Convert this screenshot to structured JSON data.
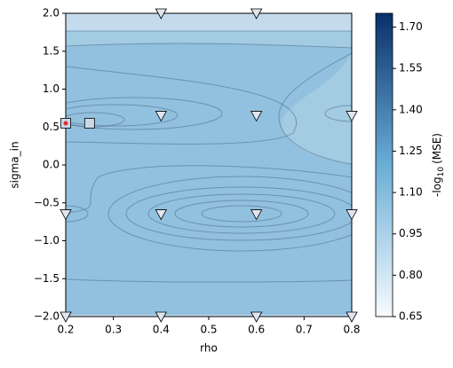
{
  "chart_data": {
    "type": "contour",
    "x_label": "rho",
    "y_label": "sigma_in",
    "xlim": [
      0.2,
      0.8
    ],
    "ylim": [
      -2,
      2
    ],
    "xticks": [
      0.2,
      0.3,
      0.4,
      0.5,
      0.6,
      0.7,
      0.8
    ],
    "yticks": [
      {
        "value": -2,
        "label": "−2.0"
      },
      {
        "value": -1.5,
        "label": "−1.5"
      },
      {
        "value": -1,
        "label": "−1.0"
      },
      {
        "value": -0.5,
        "label": "−0.5"
      },
      {
        "value": 0,
        "label": "0.0"
      },
      {
        "value": 0.5,
        "label": "0.5"
      },
      {
        "value": 1,
        "label": "1.0"
      },
      {
        "value": 1.5,
        "label": "1.5"
      },
      {
        "value": 2,
        "label": "2.0"
      }
    ],
    "colorbar": {
      "label_prefix": "-log",
      "label_subscript": "10",
      "label_suffix": "(MSE)",
      "clim": [
        0.65,
        1.75
      ],
      "ticks": [
        0.65,
        {
          "value": 0.8,
          "label": "0.80"
        },
        0.95,
        {
          "value": 1.1,
          "label": "1.10"
        },
        1.25,
        {
          "value": 1.4,
          "label": "1.40"
        },
        1.55,
        {
          "value": 1.7,
          "label": "1.70"
        }
      ],
      "colors": [
        "#f7fbff",
        "#08306b"
      ]
    },
    "markers": [
      {
        "shape": "triangle",
        "color": "#dfe6f0",
        "x": [
          0.4,
          0.6,
          0.4,
          0.6,
          0.8,
          0.2,
          0.4,
          0.6,
          0.8,
          0.2,
          0.4,
          0.6,
          0.8
        ],
        "y": [
          2,
          2,
          0.65,
          0.65,
          0.65,
          -0.65,
          -0.65,
          -0.65,
          -0.65,
          -2,
          -2,
          -2,
          -2
        ]
      },
      {
        "shape": "square",
        "color": "#c9d9e8",
        "x": [
          0.25,
          0.2
        ],
        "y": [
          0.55,
          0.55
        ]
      },
      {
        "shape": "dot",
        "color": "#e03030",
        "x": [
          0.2
        ],
        "y": [
          0.55
        ]
      }
    ]
  }
}
